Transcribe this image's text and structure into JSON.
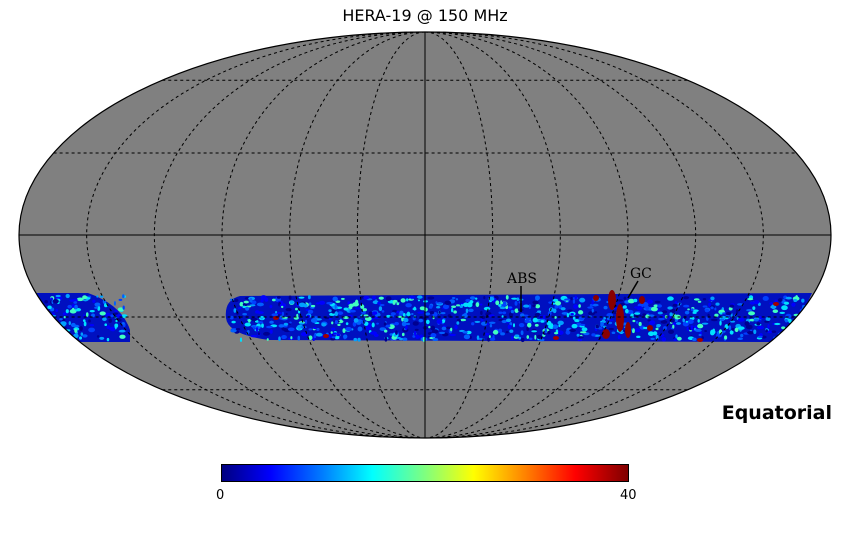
{
  "title": "HERA-19 @ 150 MHz",
  "coordinate_frame": "Equatorial",
  "projection": "mollweide",
  "colormap": "jet",
  "graticule": true,
  "colorbar": {
    "min": "0",
    "max": "40"
  },
  "annotations": [
    {
      "label": "ABS"
    },
    {
      "label": "GC"
    }
  ],
  "colors": {
    "background_sky": "#808080",
    "graticule": "#000000",
    "low": "#00007f",
    "high": "#7f0000"
  }
}
